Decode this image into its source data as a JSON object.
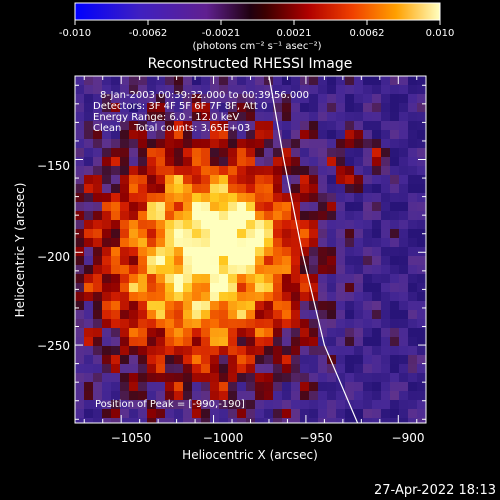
{
  "colorbar": {
    "ticks": [
      "-0.010",
      "-0.0062",
      "-0.0021",
      "0.0021",
      "0.0062",
      "0.010"
    ],
    "unit_label": "(photons cm⁻² s⁻¹ asec⁻²)",
    "range": [
      -0.01,
      0.01
    ],
    "colors": [
      "#0000ff",
      "#5a1fb0",
      "#7a2aa0",
      "#2a0010",
      "#900000",
      "#e02000",
      "#ff8000",
      "#ffe000",
      "#ffffb0"
    ]
  },
  "chart_data": {
    "type": "heatmap",
    "title": "Reconstructed RHESSI Image",
    "xlabel": "Heliocentric X (arcsec)",
    "ylabel": "Heliocentric Y (arcsec)",
    "xlim": [
      -1075,
      -885
    ],
    "ylim": [
      -292,
      -105
    ],
    "x_ticks": [
      -1050,
      -1000,
      -950,
      -900
    ],
    "x_tick_labels": [
      "−1050",
      "−1000",
      "−950",
      "−900"
    ],
    "y_ticks": [
      -150,
      -200,
      -250
    ],
    "y_tick_labels": [
      "−150",
      "−200",
      "−250"
    ],
    "info_lines": [
      "8-Jan-2003 00:39:32.000 to 00:39:56.000",
      "Detectors: 3F 4F 5F 6F 7F 8F, Att 0",
      "Energy Range: 6.0 - 12.0 keV",
      "Clean    Total counts: 3.65E+03"
    ],
    "peak_text": "Position of Peak = [-990,-190]",
    "peak": [
      -990,
      -190
    ],
    "limb_points": [
      [
        -970,
        -105
      ],
      [
        -962,
        -150
      ],
      [
        -952,
        -200
      ],
      [
        -940,
        -250
      ],
      [
        -922,
        -292
      ]
    ]
  },
  "footer": {
    "timestamp": "27-Apr-2022 18:13"
  }
}
